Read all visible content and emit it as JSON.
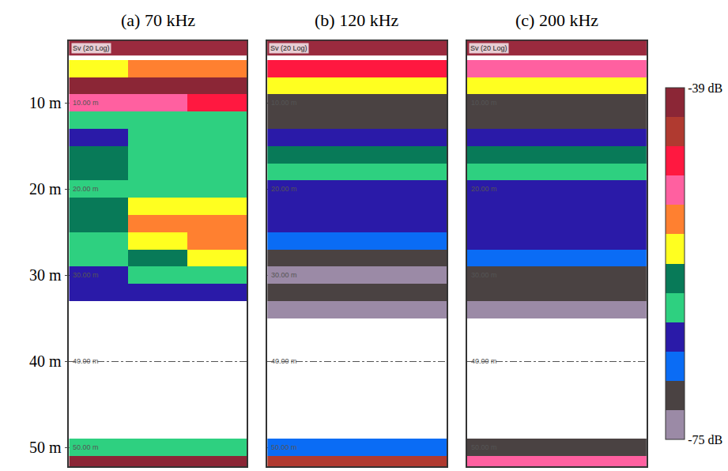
{
  "chart_data": {
    "type": "heatmap",
    "header": "Sv (20 Log)",
    "y": [
      4,
      6,
      8,
      10,
      12,
      14,
      16,
      18,
      20,
      22,
      24,
      26,
      28,
      30,
      32,
      34,
      36,
      38,
      40,
      42,
      44,
      46,
      48,
      50,
      52
    ],
    "ylim": [
      2.8,
      52.2
    ],
    "yticks": [
      {
        "value": 10,
        "label": "10 m"
      },
      {
        "value": 20,
        "label": "20 m"
      },
      {
        "value": 30,
        "label": "30 m"
      },
      {
        "value": 40,
        "label": "40 m"
      },
      {
        "value": 50,
        "label": "50 m"
      }
    ],
    "depth_labels": [
      {
        "value": 10,
        "label": "10.00 m"
      },
      {
        "value": 20,
        "label": "20.00 m"
      },
      {
        "value": 30,
        "label": "30.00 m"
      },
      {
        "value": 40,
        "label": "40.00 m"
      },
      {
        "value": 50,
        "label": "50.00 m"
      }
    ],
    "grid": true,
    "panels": [
      {
        "title": "(a) 70 kHz",
        "z": [
          [
            null,
            null,
            null
          ],
          [
            -55,
            -54,
            -53
          ],
          [
            -40,
            -40,
            -41
          ],
          [
            -50,
            -49,
            -46
          ],
          [
            -63,
            -62,
            -62
          ],
          [
            -64,
            -63,
            -63
          ],
          [
            -60,
            -61,
            -62
          ],
          [
            -59,
            -62,
            -63
          ],
          [
            -62,
            -62,
            -62
          ],
          [
            -58,
            -56,
            -56
          ],
          [
            -58,
            -54,
            -53
          ],
          [
            -61,
            -56,
            -52
          ],
          [
            -63,
            -60,
            -55
          ],
          [
            -64,
            -63,
            -62
          ],
          [
            -66,
            -66,
            -66
          ],
          [
            null,
            null,
            null
          ],
          [
            null,
            null,
            null
          ],
          [
            null,
            null,
            null
          ],
          [
            null,
            null,
            null
          ],
          [
            null,
            null,
            null
          ],
          [
            null,
            null,
            null
          ],
          [
            null,
            null,
            null
          ],
          [
            null,
            null,
            null
          ],
          [
            -62,
            -62,
            -62
          ],
          [
            -40,
            -40,
            -40
          ]
        ]
      },
      {
        "title": "(b) 120 kHz",
        "z": [
          [
            null,
            null,
            null
          ],
          [
            -47,
            -47,
            -48
          ],
          [
            -55,
            -55,
            -55
          ],
          [
            -72,
            -72,
            -72
          ],
          [
            -70,
            -70,
            -70
          ],
          [
            -64,
            -64,
            -64
          ],
          [
            -58,
            -58,
            -59
          ],
          [
            -63,
            -63,
            -63
          ],
          [
            -64,
            -64,
            -64
          ],
          [
            -64,
            -64,
            -64
          ],
          [
            -65,
            -65,
            -65
          ],
          [
            -67,
            -67,
            -67
          ],
          [
            -70,
            -70,
            -70
          ],
          [
            -73,
            -73,
            -73
          ],
          [
            -71,
            -71,
            -71
          ],
          [
            -73,
            -73,
            -73
          ],
          [
            null,
            null,
            null
          ],
          [
            null,
            null,
            null
          ],
          [
            null,
            null,
            null
          ],
          [
            null,
            null,
            null
          ],
          [
            null,
            null,
            null
          ],
          [
            null,
            null,
            null
          ],
          [
            null,
            null,
            null
          ],
          [
            -68,
            -68,
            -68
          ],
          [
            -45,
            -45,
            -45
          ]
        ]
      },
      {
        "title": "(c) 200 kHz",
        "z": [
          [
            null,
            null,
            null
          ],
          [
            -49,
            -49,
            -49
          ],
          [
            -55,
            -55,
            -55
          ],
          [
            -72,
            -72,
            -72
          ],
          [
            -71,
            -71,
            -71
          ],
          [
            -64,
            -64,
            -64
          ],
          [
            -59,
            -59,
            -59
          ],
          [
            -63,
            -63,
            -63
          ],
          [
            -64,
            -64,
            -64
          ],
          [
            -64,
            -64,
            -64
          ],
          [
            -65,
            -65,
            -65
          ],
          [
            -66,
            -66,
            -66
          ],
          [
            -68,
            -68,
            -68
          ],
          [
            -72,
            -72,
            -72
          ],
          [
            -72,
            -72,
            -72
          ],
          [
            -73,
            -73,
            -73
          ],
          [
            null,
            null,
            null
          ],
          [
            null,
            null,
            null
          ],
          [
            null,
            null,
            null
          ],
          [
            null,
            null,
            null
          ],
          [
            null,
            null,
            null
          ],
          [
            null,
            null,
            null
          ],
          [
            null,
            null,
            null
          ],
          [
            -70,
            -70,
            -70
          ],
          [
            -50,
            -50,
            -50
          ]
        ]
      }
    ],
    "colorbar": {
      "range": [
        -75,
        -39
      ],
      "ticks": [
        {
          "value": -39,
          "label": "-39 dB"
        },
        {
          "value": -75,
          "label": "-75 dB"
        }
      ],
      "colors": [
        "#9b8aa6",
        "#4a4242",
        "#0a6cf5",
        "#2a1aa8",
        "#2ed080",
        "#087a58",
        "#ffff20",
        "#ff8030",
        "#ff60a0",
        "#ff1840",
        "#b03a30",
        "#8b2636"
      ]
    }
  }
}
